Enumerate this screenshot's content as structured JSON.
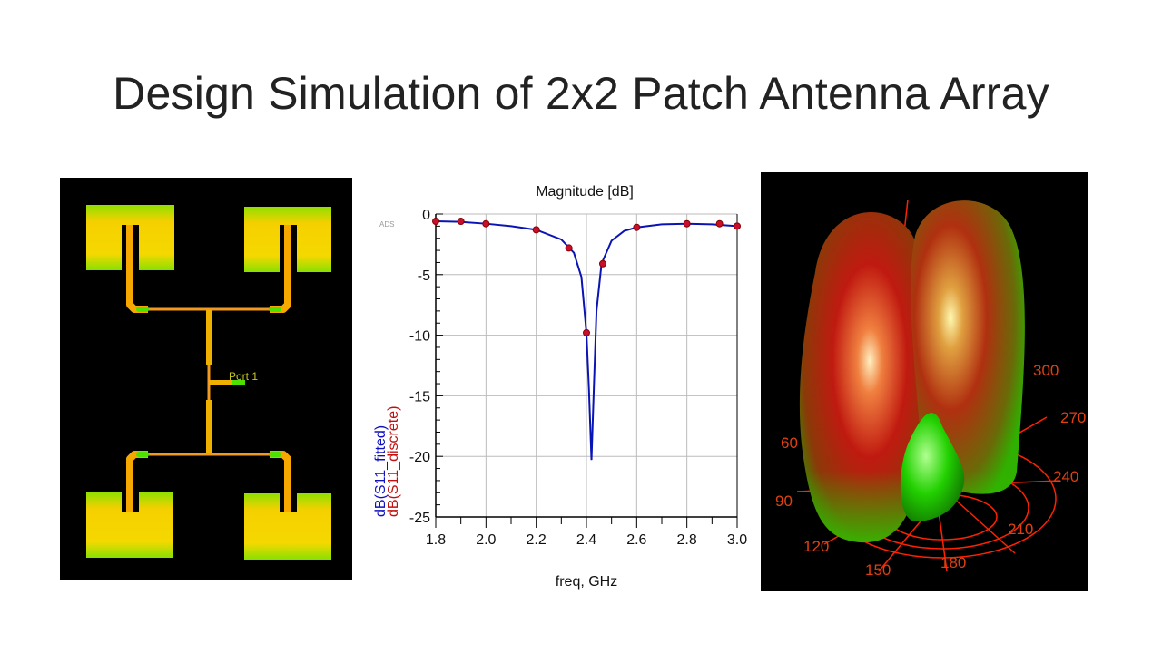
{
  "slide": {
    "title": "Design Simulation of 2x2 Patch Antenna Array"
  },
  "layout_image": {
    "port_label": "Port 1",
    "colors": {
      "background": "#000000",
      "patch": "#f5d800",
      "edge": "#66dd00",
      "feed": "#f7a000"
    }
  },
  "radiation_pattern": {
    "angle_labels": [
      "60",
      "90",
      "120",
      "150",
      "180",
      "210",
      "240",
      "270",
      "300"
    ],
    "colors": {
      "lobe_main": "#d41a10",
      "lobe_low": "#22cc00",
      "grid": "#ff2200"
    }
  },
  "chart_data": {
    "type": "line",
    "title": "Magnitude [dB]",
    "xlabel": "freq, GHz",
    "ylabels": [
      "dB(S11_fitted)",
      "dB(S11_discrete)"
    ],
    "watermark": "ADS",
    "xlim": [
      1.8,
      3.0
    ],
    "ylim": [
      -25,
      0
    ],
    "xticks": [
      "1.8",
      "2.0",
      "2.2",
      "2.4",
      "2.6",
      "2.8",
      "3.0"
    ],
    "yticks": [
      "0",
      "-5",
      "-10",
      "-15",
      "-20",
      "-25"
    ],
    "grid": true,
    "series": [
      {
        "name": "dB(S11_fitted)",
        "color": "#0a14b4",
        "style": "line",
        "x": [
          1.8,
          1.9,
          2.0,
          2.1,
          2.2,
          2.3,
          2.35,
          2.38,
          2.4,
          2.41,
          2.42,
          2.43,
          2.44,
          2.46,
          2.5,
          2.55,
          2.6,
          2.7,
          2.8,
          2.9,
          3.0
        ],
        "y": [
          -0.6,
          -0.65,
          -0.8,
          -1.0,
          -1.3,
          -2.1,
          -3.2,
          -5.2,
          -9.8,
          -14.5,
          -20.3,
          -14.0,
          -8.0,
          -4.1,
          -2.2,
          -1.4,
          -1.1,
          -0.85,
          -0.8,
          -0.85,
          -1.0
        ]
      },
      {
        "name": "dB(S11_discrete)",
        "color": "#c8102e",
        "style": "markers",
        "x": [
          1.8,
          1.9,
          2.0,
          2.2,
          2.33,
          2.4,
          2.465,
          2.6,
          2.8,
          2.93,
          3.0
        ],
        "y": [
          -0.6,
          -0.6,
          -0.8,
          -1.3,
          -2.8,
          -9.8,
          -4.1,
          -1.1,
          -0.8,
          -0.8,
          -1.0
        ]
      }
    ]
  }
}
